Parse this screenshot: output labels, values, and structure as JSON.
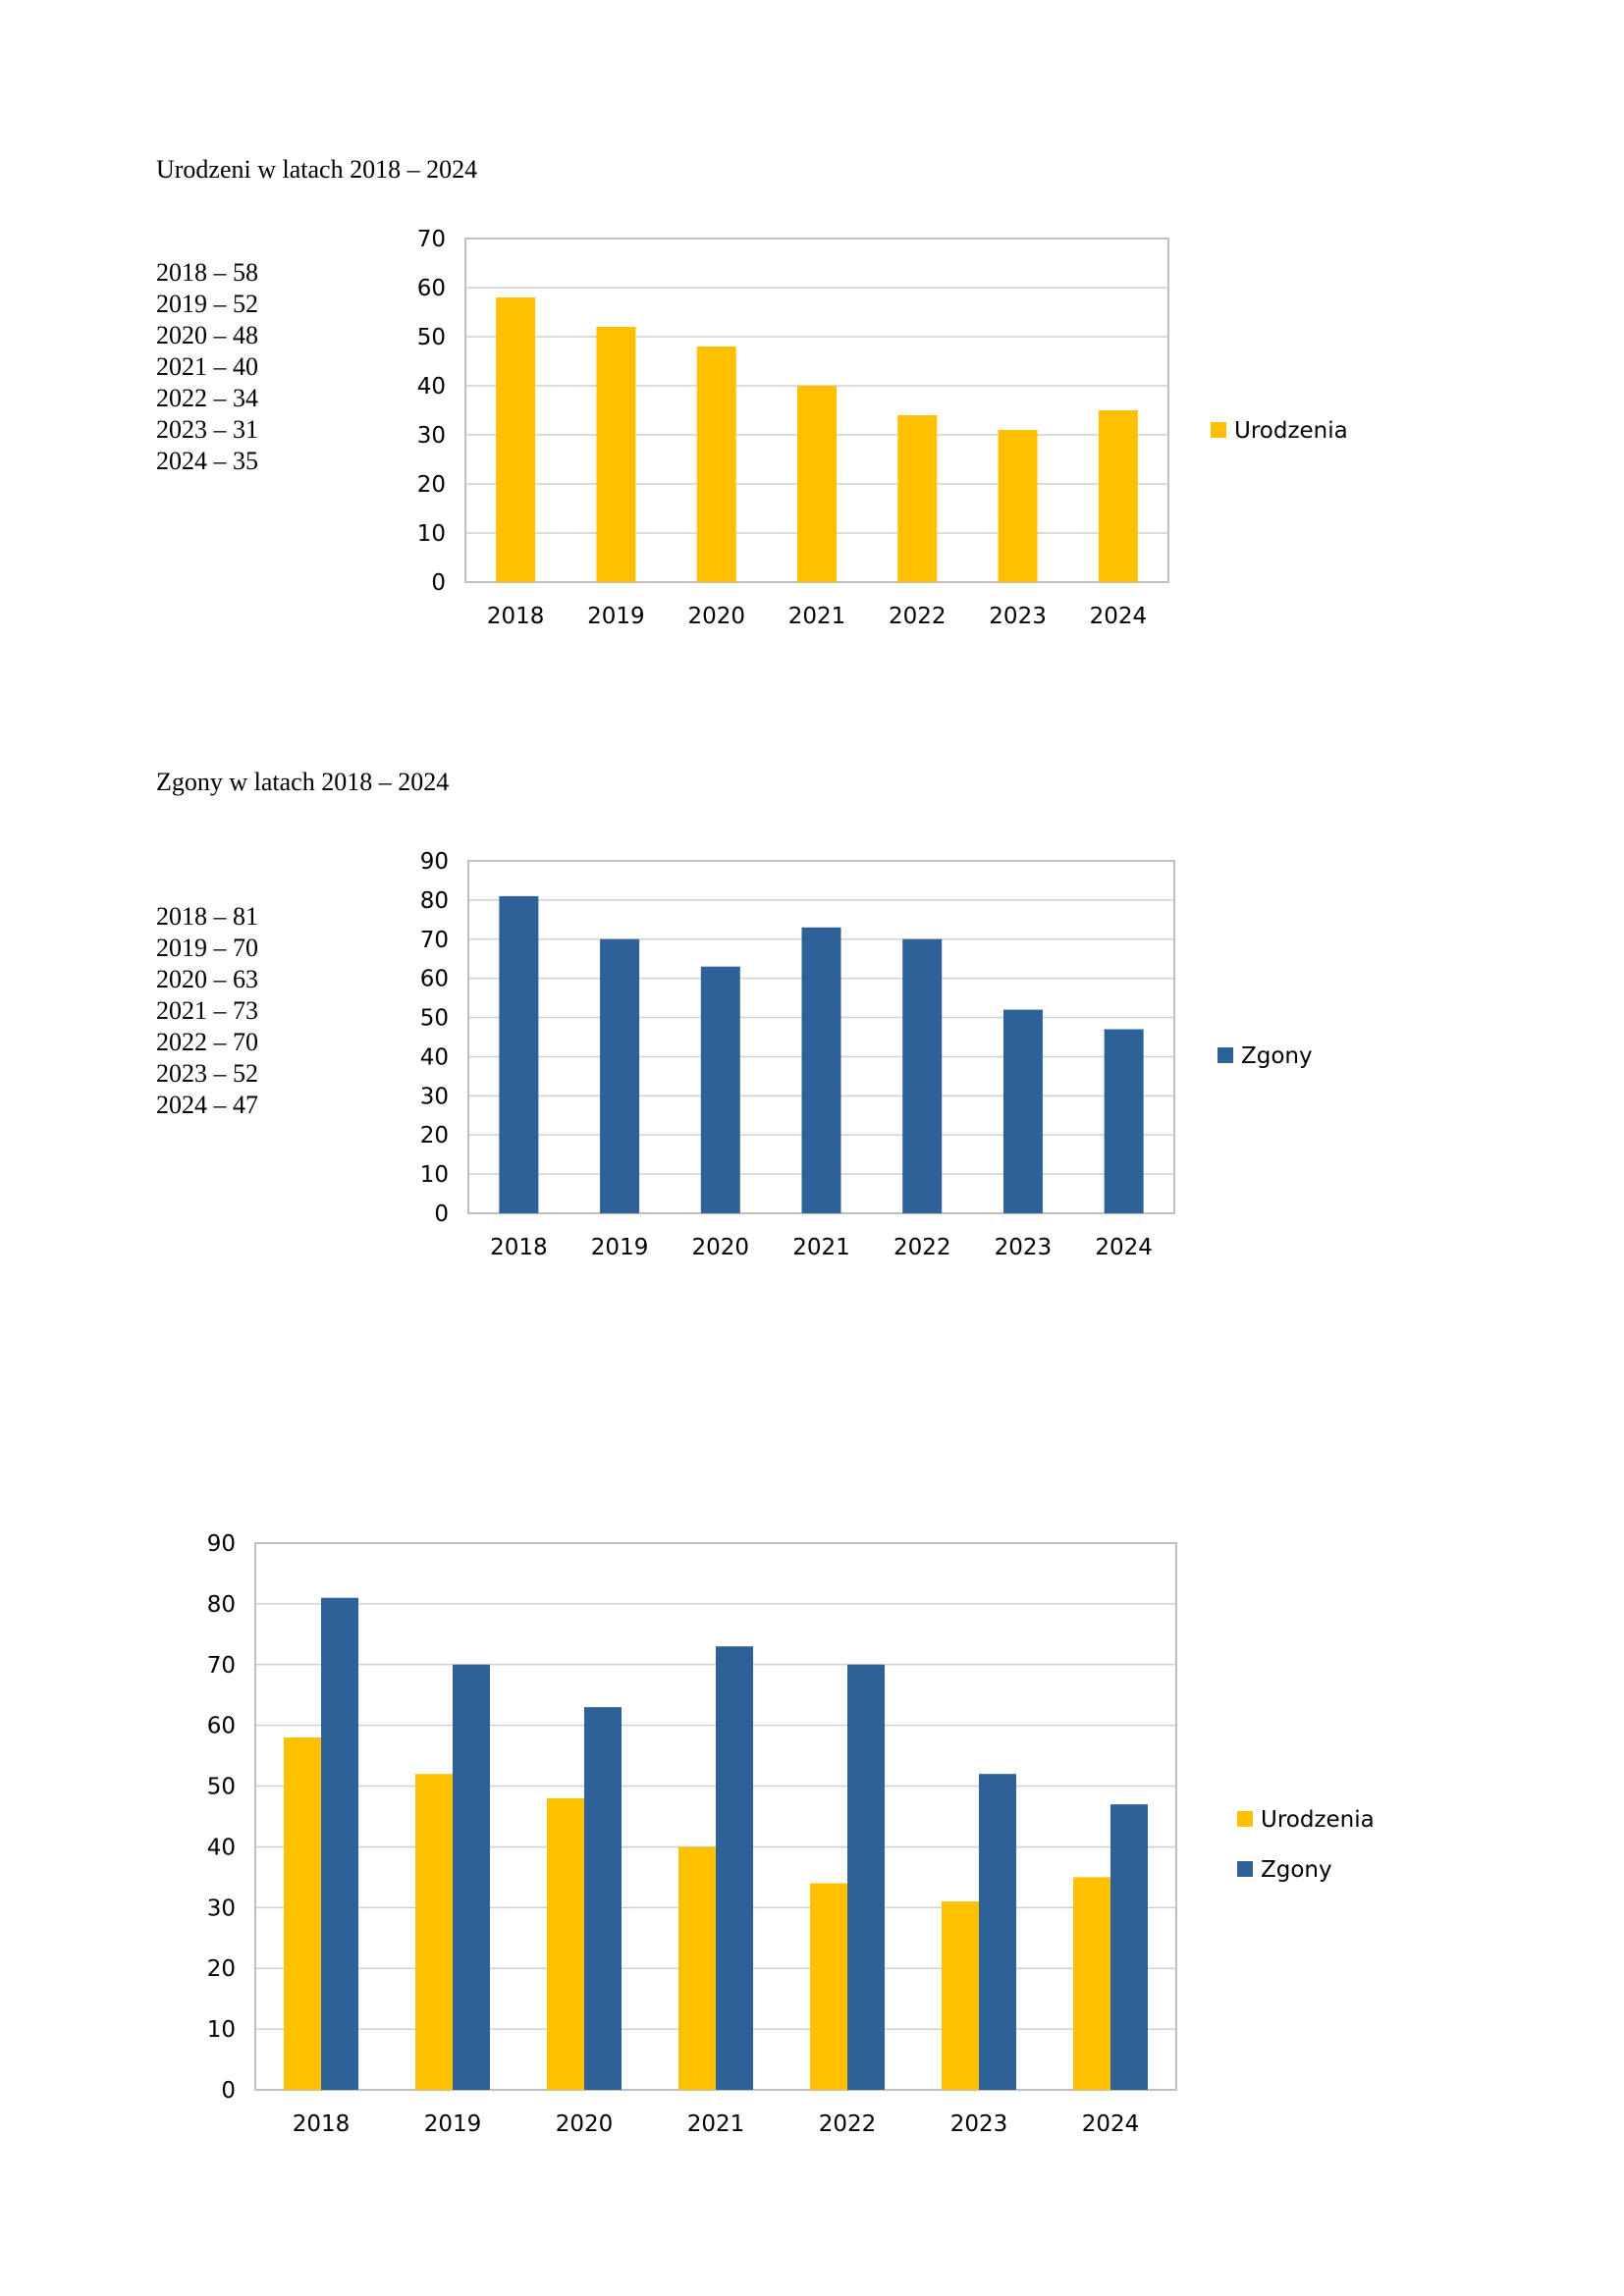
{
  "headings": {
    "births": "Urodzeni w latach 2018 – 2024",
    "deaths": "Zgony w latach 2018 – 2024"
  },
  "births_list": [
    "2018 – 58",
    "2019 – 52",
    "2020 – 48",
    "2021 – 40",
    "2022 – 34",
    "2023 – 31",
    "2024 – 35"
  ],
  "deaths_list": [
    "2018 – 81",
    "2019 – 70",
    "2020 – 63",
    "2021 – 73",
    "2022 – 70",
    "2023 – 52",
    "2024 – 47"
  ],
  "colors": {
    "urodzenia": "#FFC000",
    "zgony": "#2E6198",
    "grid": "#D0D0D0",
    "frame": "#BFBFBF"
  },
  "chart_data": [
    {
      "type": "bar",
      "title": "",
      "xlabel": "",
      "ylabel": "",
      "categories": [
        "2018",
        "2019",
        "2020",
        "2021",
        "2022",
        "2023",
        "2024"
      ],
      "series": [
        {
          "name": "Urodzenia",
          "values": [
            58,
            52,
            48,
            40,
            34,
            31,
            35
          ],
          "color": "#FFC000"
        }
      ],
      "ylim": [
        0,
        70
      ],
      "ystep": 10,
      "grid": true,
      "legend": "right"
    },
    {
      "type": "bar",
      "title": "",
      "xlabel": "",
      "ylabel": "",
      "categories": [
        "2018",
        "2019",
        "2020",
        "2021",
        "2022",
        "2023",
        "2024"
      ],
      "series": [
        {
          "name": "Zgony",
          "values": [
            81,
            70,
            63,
            73,
            70,
            52,
            47
          ],
          "color": "#2E6198"
        }
      ],
      "ylim": [
        0,
        90
      ],
      "ystep": 10,
      "grid": true,
      "legend": "right"
    },
    {
      "type": "bar",
      "title": "",
      "xlabel": "",
      "ylabel": "",
      "categories": [
        "2018",
        "2019",
        "2020",
        "2021",
        "2022",
        "2023",
        "2024"
      ],
      "series": [
        {
          "name": "Urodzenia",
          "values": [
            58,
            52,
            48,
            40,
            34,
            31,
            35
          ],
          "color": "#FFC000"
        },
        {
          "name": "Zgony",
          "values": [
            81,
            70,
            63,
            73,
            70,
            52,
            47
          ],
          "color": "#2E6198"
        }
      ],
      "ylim": [
        0,
        90
      ],
      "ystep": 10,
      "grid": true,
      "legend": "right"
    }
  ]
}
